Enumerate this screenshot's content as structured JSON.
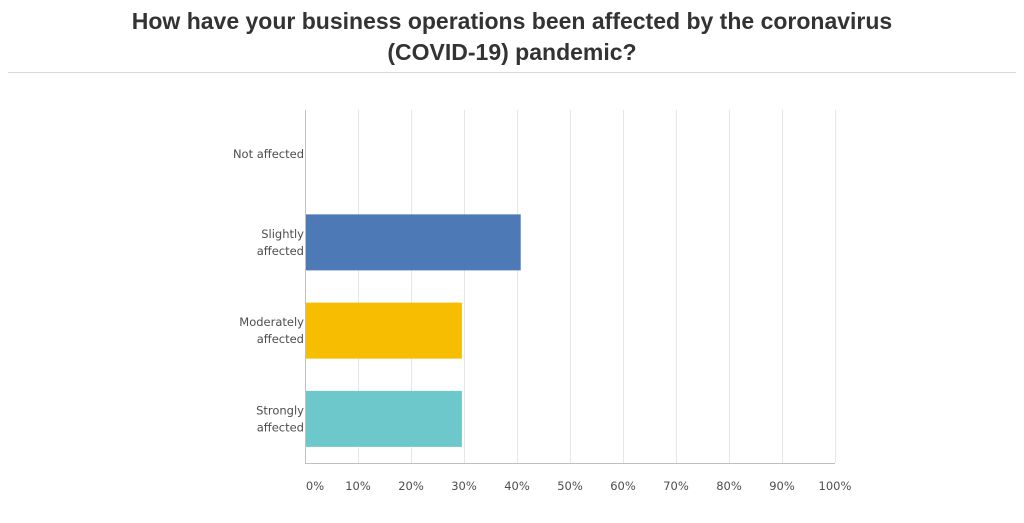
{
  "chart_data": {
    "type": "bar",
    "orientation": "horizontal",
    "title": "How have your business operations been affected by the coronavirus (COVID-19) pandemic?",
    "categories": [
      [
        "Not affected"
      ],
      [
        "Slightly",
        "affected"
      ],
      [
        "Moderately",
        "affected"
      ],
      [
        "Strongly",
        "affected"
      ]
    ],
    "values": [
      0,
      40.7,
      29.6,
      29.6
    ],
    "colors": [
      "#4e79b7",
      "#4e79b7",
      "#f7bd00",
      "#6cc8cb"
    ],
    "xlim": [
      0,
      100
    ],
    "xticks": [
      0,
      10,
      20,
      30,
      40,
      50,
      60,
      70,
      80,
      90,
      100
    ],
    "xtick_labels": [
      "0%",
      "10%",
      "20%",
      "30%",
      "40%",
      "50%",
      "60%",
      "70%",
      "80%",
      "90%",
      "100%"
    ],
    "grid": true,
    "grid_color": "#e6e6e6",
    "axis_color": "#bfbfbf"
  }
}
